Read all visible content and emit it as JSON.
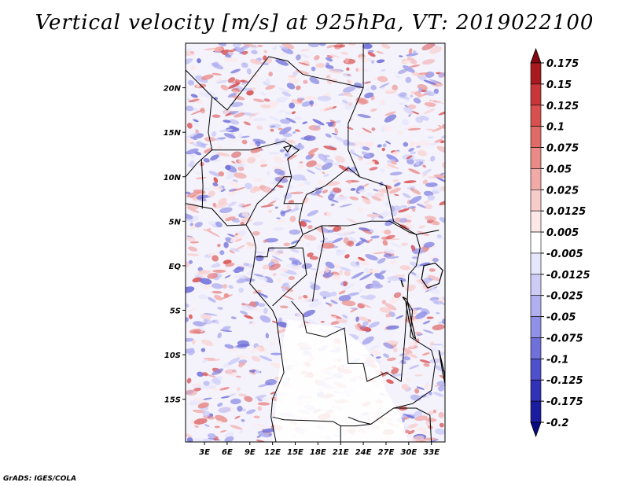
{
  "chart_data": {
    "type": "heatmap",
    "title": "Vertical velocity [m/s] at 925hPa, VT: 2019022100",
    "xlabel": "",
    "ylabel": "",
    "x_ticks": [
      "3E",
      "6E",
      "9E",
      "12E",
      "15E",
      "18E",
      "21E",
      "24E",
      "27E",
      "30E",
      "33E"
    ],
    "x_tick_values": [
      3,
      6,
      9,
      12,
      15,
      18,
      21,
      24,
      27,
      30,
      33
    ],
    "y_ticks": [
      "20N",
      "15N",
      "10N",
      "5N",
      "EQ",
      "5S",
      "10S",
      "15S"
    ],
    "y_tick_values": [
      20,
      15,
      10,
      5,
      0,
      -5,
      -10,
      -15
    ],
    "xlim": [
      0.5,
      34.8
    ],
    "ylim": [
      -19.8,
      25
    ],
    "colorbar": {
      "levels": [
        "0.175",
        "0.15",
        "0.125",
        "0.1",
        "0.075",
        "0.05",
        "0.025",
        "0.0125",
        "0.005",
        "-0.005",
        "-0.0125",
        "-0.025",
        "-0.05",
        "-0.075",
        "-0.1",
        "-0.125",
        "-0.175",
        "-0.2"
      ],
      "colors": [
        "#7f0a10",
        "#a81a20",
        "#c8363a",
        "#d95050",
        "#e06a68",
        "#e98a88",
        "#f2aaa9",
        "#f8cccb",
        "#fde7e7",
        "#ffffff",
        "#e6e6fc",
        "#ccccf7",
        "#b0b0f0",
        "#9090e6",
        "#7070da",
        "#5050cc",
        "#3232b8",
        "#1c1ca0",
        "#0a0a80"
      ]
    }
  },
  "footer": "GrADS: IGES/COLA"
}
